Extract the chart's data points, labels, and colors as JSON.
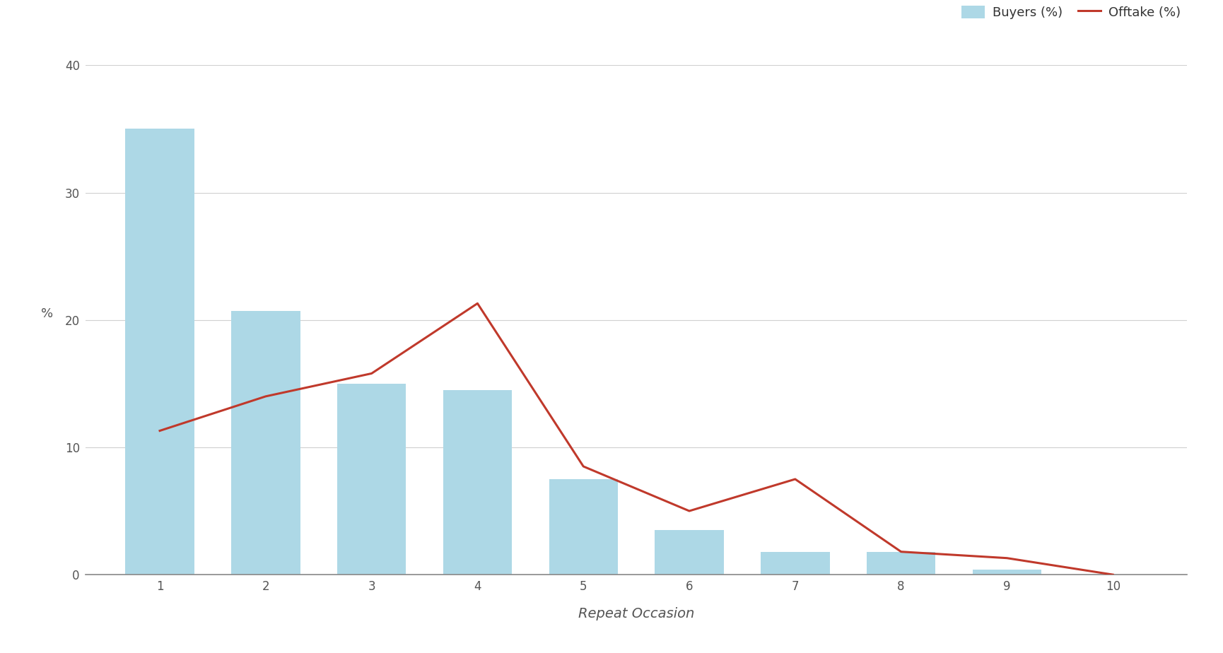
{
  "categories": [
    1,
    2,
    3,
    4,
    5,
    6,
    7,
    8,
    9,
    10
  ],
  "buyers": [
    35.0,
    20.7,
    15.0,
    14.5,
    7.5,
    3.5,
    1.8,
    1.8,
    0.4,
    0.0
  ],
  "offtake": [
    11.3,
    14.0,
    15.8,
    21.3,
    8.5,
    5.0,
    7.5,
    1.8,
    1.3,
    0.0
  ],
  "bar_color": "#add8e6",
  "line_color": "#c0392b",
  "xlabel": "Repeat Occasion",
  "ylabel": "%",
  "ylim": [
    0,
    40
  ],
  "yticks": [
    0,
    10,
    20,
    30,
    40
  ],
  "legend_buyers": "Buyers (%)",
  "legend_offtake": "Offtake (%)",
  "background_color": "#ffffff",
  "grid_color": "#d0d0d0",
  "bar_width": 0.65,
  "line_width": 2.2,
  "xlabel_fontsize": 14,
  "ylabel_fontsize": 13,
  "tick_fontsize": 12,
  "legend_fontsize": 13,
  "tick_color": "#555555",
  "label_color": "#555555"
}
